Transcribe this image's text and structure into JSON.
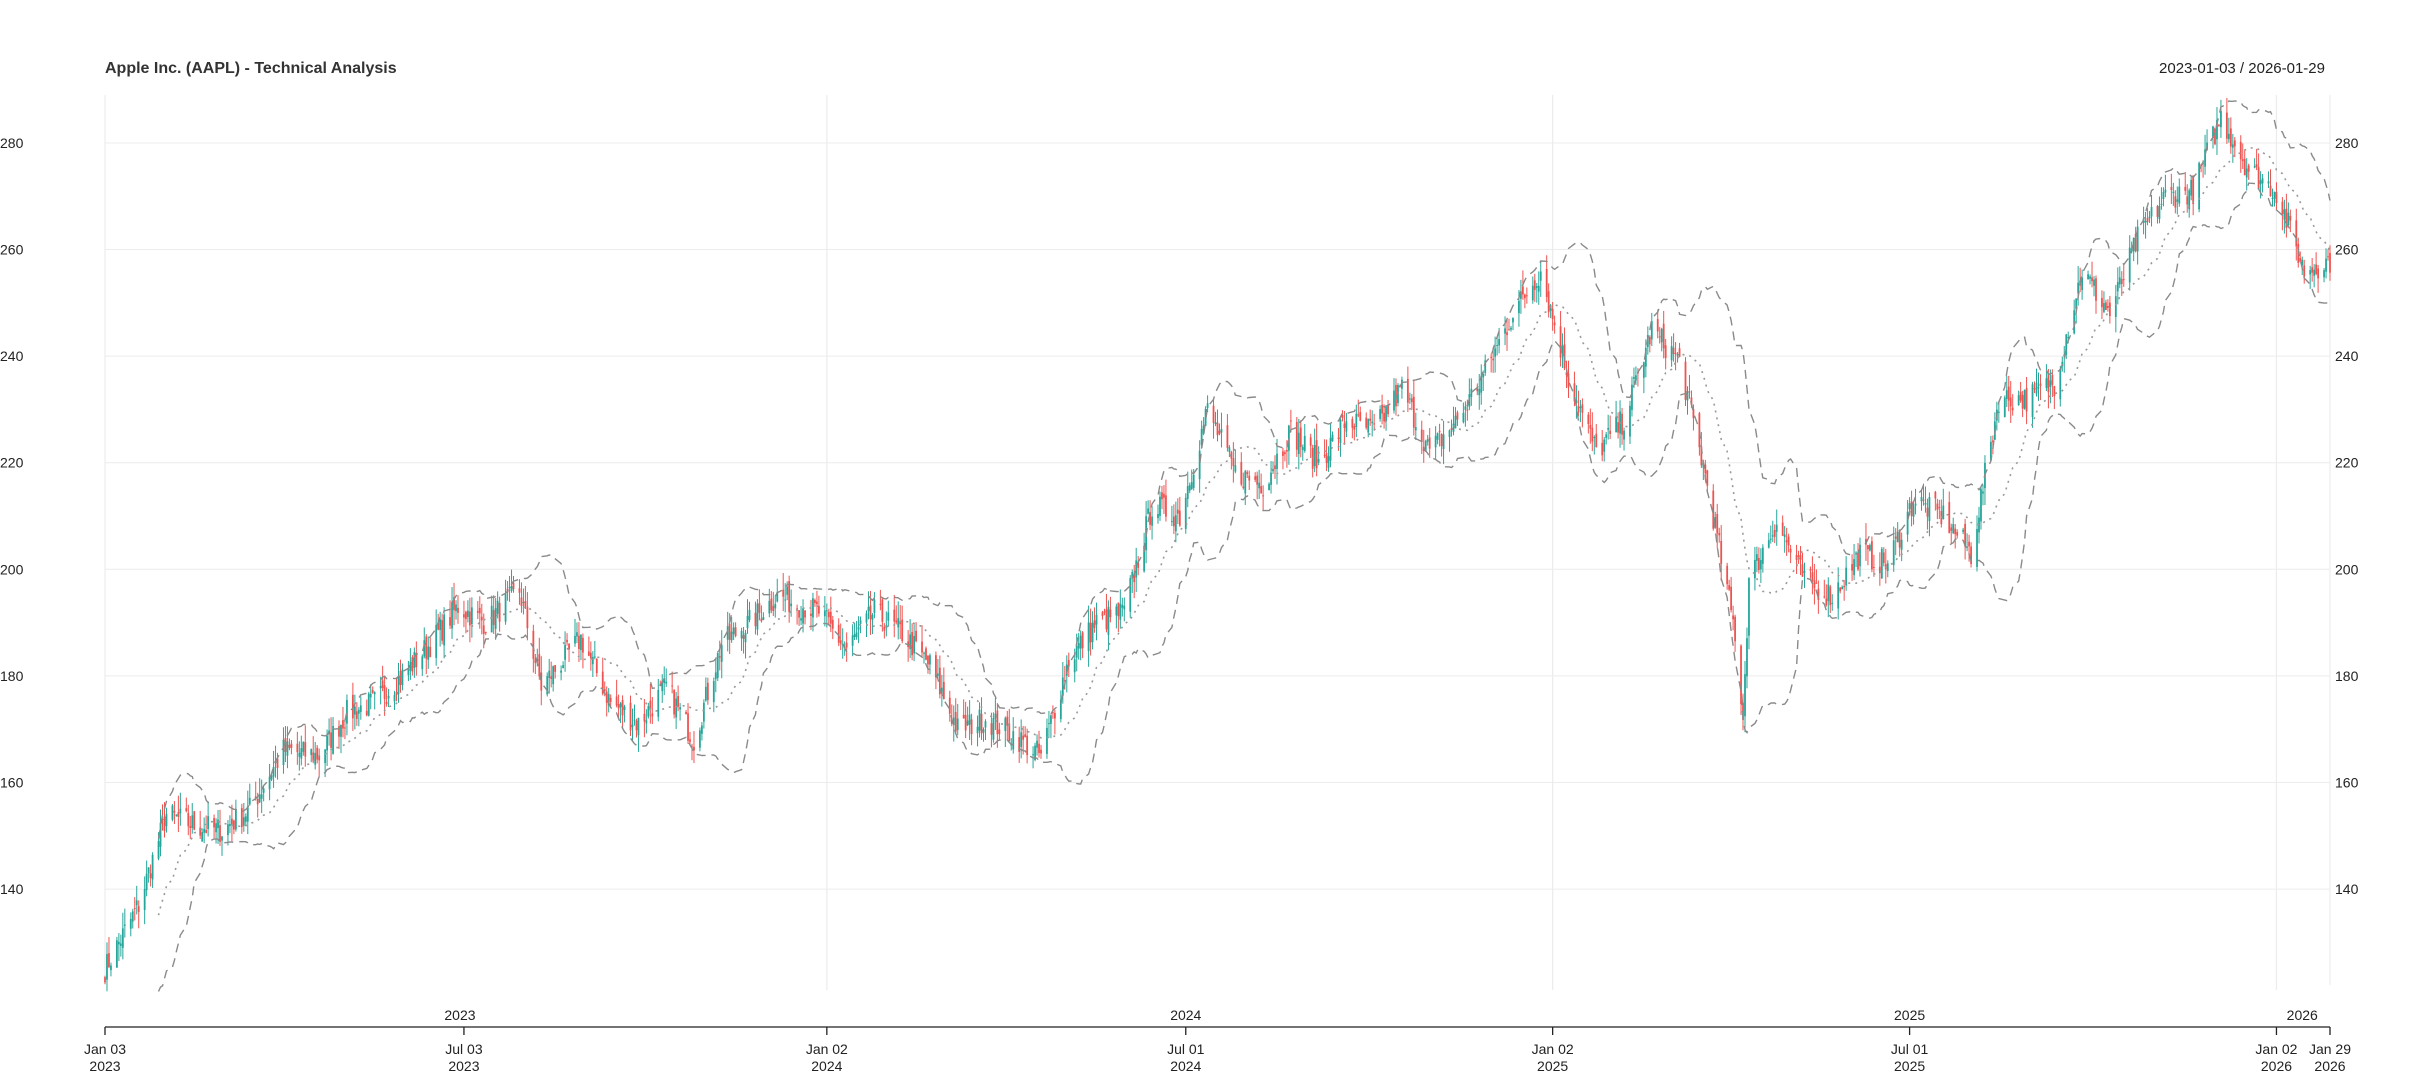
{
  "chart_data": {
    "type": "candlestick",
    "title": "Apple Inc. (AAPL) - Technical Analysis",
    "date_range_label": "2023-01-03 / 2026-01-29",
    "start_date": "2023-01-03",
    "end_date": "2026-01-29",
    "ylim": [
      122,
      289
    ],
    "y_ticks": [
      140,
      160,
      180,
      200,
      220,
      240,
      260,
      280
    ],
    "grid": true,
    "x_year_labels": [
      {
        "date": "2023-07-01",
        "label": "2023"
      },
      {
        "date": "2024-07-01",
        "label": "2024"
      },
      {
        "date": "2025-07-01",
        "label": "2025"
      },
      {
        "date": "2026-01-15",
        "label": "2026"
      }
    ],
    "x_ticks": [
      {
        "date": "2023-01-03",
        "line1": "Jan 03",
        "line2": "2023"
      },
      {
        "date": "2023-07-03",
        "line1": "Jul 03",
        "line2": "2023"
      },
      {
        "date": "2024-01-02",
        "line1": "Jan 02",
        "line2": "2024"
      },
      {
        "date": "2024-07-01",
        "line1": "Jul 01",
        "line2": "2024"
      },
      {
        "date": "2025-01-02",
        "line1": "Jan 02",
        "line2": "2025"
      },
      {
        "date": "2025-07-01",
        "line1": "Jul 01",
        "line2": "2025"
      },
      {
        "date": "2026-01-02",
        "line1": "Jan 02",
        "line2": "2026"
      },
      {
        "date": "2026-01-29",
        "line1": "Jan 29",
        "line2": "2026"
      }
    ],
    "colors": {
      "up": "#26a69a",
      "down": "#ef5350",
      "band": "#8a8a8a",
      "mid": "#9a9a9a",
      "grid": "#ececec"
    },
    "indicators": [
      "bollinger-upper",
      "bollinger-middle",
      "bollinger-lower"
    ],
    "close_path": [
      [
        "2023-01-03",
        125
      ],
      [
        "2023-01-20",
        137
      ],
      [
        "2023-02-03",
        154
      ],
      [
        "2023-02-17",
        152
      ],
      [
        "2023-03-03",
        151
      ],
      [
        "2023-03-17",
        155
      ],
      [
        "2023-04-03",
        166
      ],
      [
        "2023-04-21",
        165
      ],
      [
        "2023-05-05",
        173
      ],
      [
        "2023-05-19",
        175
      ],
      [
        "2023-06-02",
        180
      ],
      [
        "2023-06-16",
        186
      ],
      [
        "2023-06-30",
        193
      ],
      [
        "2023-07-14",
        190
      ],
      [
        "2023-07-31",
        196
      ],
      [
        "2023-08-11",
        178
      ],
      [
        "2023-08-31",
        187
      ],
      [
        "2023-09-15",
        175
      ],
      [
        "2023-09-29",
        171
      ],
      [
        "2023-10-13",
        178
      ],
      [
        "2023-10-27",
        168
      ],
      [
        "2023-11-10",
        186
      ],
      [
        "2023-11-24",
        190
      ],
      [
        "2023-12-08",
        195
      ],
      [
        "2023-12-29",
        192
      ],
      [
        "2024-01-12",
        185
      ],
      [
        "2024-01-26",
        192
      ],
      [
        "2024-02-09",
        188
      ],
      [
        "2024-02-23",
        182
      ],
      [
        "2024-03-08",
        170
      ],
      [
        "2024-03-22",
        172
      ],
      [
        "2024-04-05",
        169
      ],
      [
        "2024-04-19",
        165
      ],
      [
        "2024-05-03",
        183
      ],
      [
        "2024-05-17",
        190
      ],
      [
        "2024-05-31",
        192
      ],
      [
        "2024-06-14",
        212
      ],
      [
        "2024-06-28",
        210
      ],
      [
        "2024-07-12",
        230
      ],
      [
        "2024-07-26",
        218
      ],
      [
        "2024-08-09",
        216
      ],
      [
        "2024-08-23",
        226
      ],
      [
        "2024-09-06",
        220
      ],
      [
        "2024-09-20",
        228
      ],
      [
        "2024-10-04",
        226
      ],
      [
        "2024-10-18",
        234
      ],
      [
        "2024-11-01",
        222
      ],
      [
        "2024-11-15",
        228
      ],
      [
        "2024-11-29",
        237
      ],
      [
        "2024-12-13",
        248
      ],
      [
        "2024-12-27",
        256
      ],
      [
        "2025-01-10",
        236
      ],
      [
        "2025-01-24",
        222
      ],
      [
        "2025-02-07",
        228
      ],
      [
        "2025-02-21",
        245
      ],
      [
        "2025-03-07",
        239
      ],
      [
        "2025-03-21",
        216
      ],
      [
        "2025-04-04",
        188
      ],
      [
        "2025-04-08",
        172
      ],
      [
        "2025-04-11",
        198
      ],
      [
        "2025-04-25",
        209
      ],
      [
        "2025-05-09",
        198
      ],
      [
        "2025-05-23",
        195
      ],
      [
        "2025-06-06",
        203
      ],
      [
        "2025-06-20",
        201
      ],
      [
        "2025-07-03",
        213
      ],
      [
        "2025-07-18",
        210
      ],
      [
        "2025-08-01",
        203
      ],
      [
        "2025-08-15",
        232
      ],
      [
        "2025-08-29",
        232
      ],
      [
        "2025-09-12",
        235
      ],
      [
        "2025-09-26",
        256
      ],
      [
        "2025-10-10",
        248
      ],
      [
        "2025-10-24",
        262
      ],
      [
        "2025-11-07",
        270
      ],
      [
        "2025-11-21",
        271
      ],
      [
        "2025-12-05",
        285
      ],
      [
        "2025-12-19",
        275
      ],
      [
        "2026-01-02",
        271
      ],
      [
        "2026-01-16",
        256
      ],
      [
        "2026-01-29",
        258
      ]
    ]
  }
}
